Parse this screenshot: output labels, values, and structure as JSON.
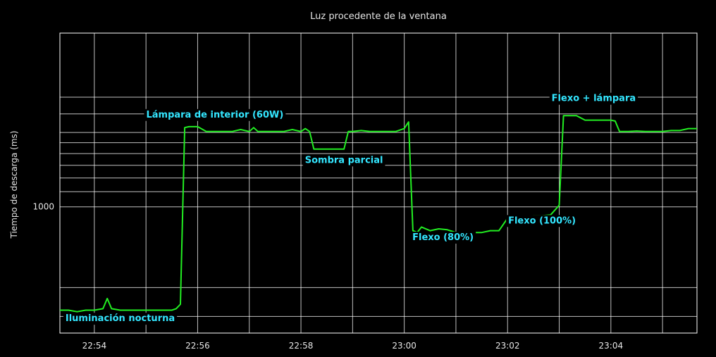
{
  "chart_data": {
    "type": "line",
    "title": "Luz procedente de la ventana",
    "ylabel": "Tiempo de descarga (ms)",
    "xlabel": "",
    "yscale": "log",
    "ylim": [
      450,
      3000
    ],
    "xlim": [
      "22:53:20",
      "22:05:40"
    ],
    "x_range_minutes": [
      -40,
      700
    ],
    "x_tick_labels": [
      "22:54",
      "22:56",
      "22:58",
      "23:00",
      "23:02",
      "23:04"
    ],
    "y_tick_labels": [
      "1000"
    ],
    "grid": true,
    "legend": "none",
    "colors": {
      "background": "#000000",
      "line": "#22ee22",
      "annotation": "#33e6ff",
      "text": "#e6e6e6"
    },
    "series": [
      {
        "x": [
          "22:53:20",
          "22:53:30",
          "22:53:40",
          "22:53:50",
          "22:54:00",
          "22:54:10",
          "22:54:15",
          "22:54:20",
          "22:54:30",
          "22:54:40",
          "22:54:50",
          "22:55:00",
          "22:55:10",
          "22:55:20",
          "22:55:30",
          "22:55:35",
          "22:55:40",
          "22:55:45",
          "22:55:50",
          "22:56:00",
          "22:56:10",
          "22:56:20",
          "22:56:30",
          "22:56:40",
          "22:56:50",
          "22:57:00",
          "22:57:05",
          "22:57:10",
          "22:57:20",
          "22:57:30",
          "22:57:40",
          "22:57:50",
          "22:58:00",
          "22:58:05",
          "22:58:10",
          "22:58:15",
          "22:58:20",
          "22:58:30",
          "22:58:40",
          "22:58:50",
          "22:58:55",
          "22:59:00",
          "22:59:10",
          "22:59:20",
          "22:59:30",
          "22:59:40",
          "22:59:50",
          "23:00:00",
          "23:00:05",
          "23:00:10",
          "23:00:15",
          "23:00:20",
          "23:00:30",
          "23:00:40",
          "23:00:50",
          "23:01:00",
          "23:01:10",
          "23:01:20",
          "23:01:30",
          "23:01:40",
          "23:01:50",
          "23:02:00",
          "23:02:10",
          "23:02:20",
          "23:02:30",
          "23:02:40",
          "23:02:50",
          "23:03:00",
          "23:03:05",
          "23:03:10",
          "23:03:20",
          "23:03:30",
          "23:03:40",
          "23:03:50",
          "23:04:00",
          "23:04:05",
          "23:04:10",
          "23:04:20",
          "23:04:30",
          "23:04:40",
          "23:04:50",
          "23:05:00",
          "23:05:10",
          "23:05:20",
          "23:05:30",
          "23:05:40"
        ],
        "y": [
          520,
          520,
          515,
          520,
          520,
          525,
          560,
          525,
          520,
          520,
          520,
          520,
          520,
          520,
          520,
          525,
          540,
          1650,
          1660,
          1660,
          1610,
          1610,
          1610,
          1610,
          1630,
          1610,
          1650,
          1610,
          1610,
          1610,
          1610,
          1630,
          1610,
          1640,
          1610,
          1440,
          1440,
          1440,
          1440,
          1440,
          1610,
          1610,
          1620,
          1610,
          1610,
          1610,
          1610,
          1640,
          1710,
          860,
          850,
          880,
          860,
          870,
          865,
          850,
          850,
          850,
          850,
          860,
          860,
          930,
          930,
          940,
          945,
          945,
          950,
          1010,
          1780,
          1780,
          1780,
          1730,
          1730,
          1730,
          1730,
          1720,
          1610,
          1610,
          1615,
          1610,
          1610,
          1610,
          1620,
          1620,
          1640,
          1640
        ]
      }
    ],
    "annotations": [
      {
        "text": "Lámpara de interior (60W)",
        "x": "22:56:20",
        "y": 1760
      },
      {
        "text": "Sombra parcial",
        "x": "22:58:50",
        "y": 1320
      },
      {
        "text": "Flexo (80%)",
        "x": "23:00:45",
        "y": 810
      },
      {
        "text": "Flexo (100%)",
        "x": "23:02:40",
        "y": 900
      },
      {
        "text": "Flexo + lámpara",
        "x": "23:03:40",
        "y": 1950
      },
      {
        "text": "Iluminación nocturna",
        "x": "22:54:30",
        "y": 485
      }
    ]
  }
}
